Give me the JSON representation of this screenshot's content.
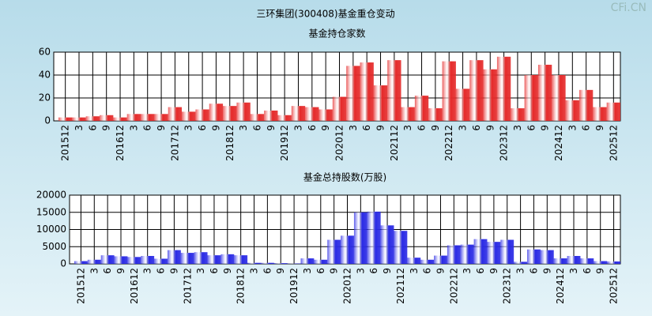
{
  "title": "三环集团(300408)基金重仓变动",
  "watermark": "CFi.CN",
  "chart_data": [
    {
      "type": "bar",
      "title": "基金持仓家数",
      "categories": [
        "201512",
        "3",
        "6",
        "9",
        "201612",
        "3",
        "6",
        "9",
        "201712",
        "3",
        "6",
        "9",
        "201812",
        "3",
        "6",
        "9",
        "201912",
        "3",
        "6",
        "9",
        "202012",
        "3",
        "6",
        "9",
        "202112",
        "3",
        "6",
        "9",
        "202212",
        "3",
        "6",
        "9",
        "202312",
        "3",
        "6",
        "9",
        "202412",
        "3",
        "6",
        "9",
        "202512"
      ],
      "series": [
        {
          "color": "#e52a2a",
          "values": [
            3,
            3,
            4,
            5,
            3,
            6,
            6,
            6,
            12,
            8,
            10,
            15,
            13,
            16,
            6,
            9,
            5,
            13,
            12,
            10,
            21,
            48,
            51,
            31,
            53,
            12,
            22,
            11,
            52,
            28,
            53,
            45,
            56,
            11,
            40,
            49,
            40,
            18,
            27,
            12,
            16
          ]
        }
      ],
      "ylim": [
        0,
        60
      ],
      "yticks": [
        0,
        20,
        40,
        60
      ],
      "grid": true
    },
    {
      "type": "bar",
      "title": "基金总持股数(万股)",
      "categories": [
        "201512",
        "3",
        "6",
        "9",
        "201612",
        "3",
        "6",
        "9",
        "201712",
        "3",
        "6",
        "9",
        "201812",
        "3",
        "6",
        "9",
        "201912",
        "3",
        "6",
        "9",
        "202012",
        "3",
        "6",
        "9",
        "202112",
        "3",
        "6",
        "9",
        "202212",
        "3",
        "6",
        "9",
        "202312",
        "3",
        "6",
        "9",
        "202412",
        "3",
        "6",
        "9",
        "202512"
      ],
      "series": [
        {
          "color": "#2a2ae5",
          "values": [
            800,
            1200,
            2500,
            2200,
            2000,
            2300,
            1500,
            4000,
            3200,
            3400,
            2500,
            2800,
            2500,
            300,
            300,
            200,
            100,
            1600,
            1200,
            7000,
            8200,
            15000,
            15200,
            11200,
            9600,
            1800,
            1200,
            2400,
            5400,
            5600,
            7200,
            6400,
            7000,
            600,
            4200,
            4000,
            1600,
            2300,
            1600,
            800,
            700
          ]
        }
      ],
      "ylim": [
        0,
        20000
      ],
      "yticks": [
        0,
        5000,
        10000,
        15000,
        20000
      ],
      "grid": true
    }
  ]
}
